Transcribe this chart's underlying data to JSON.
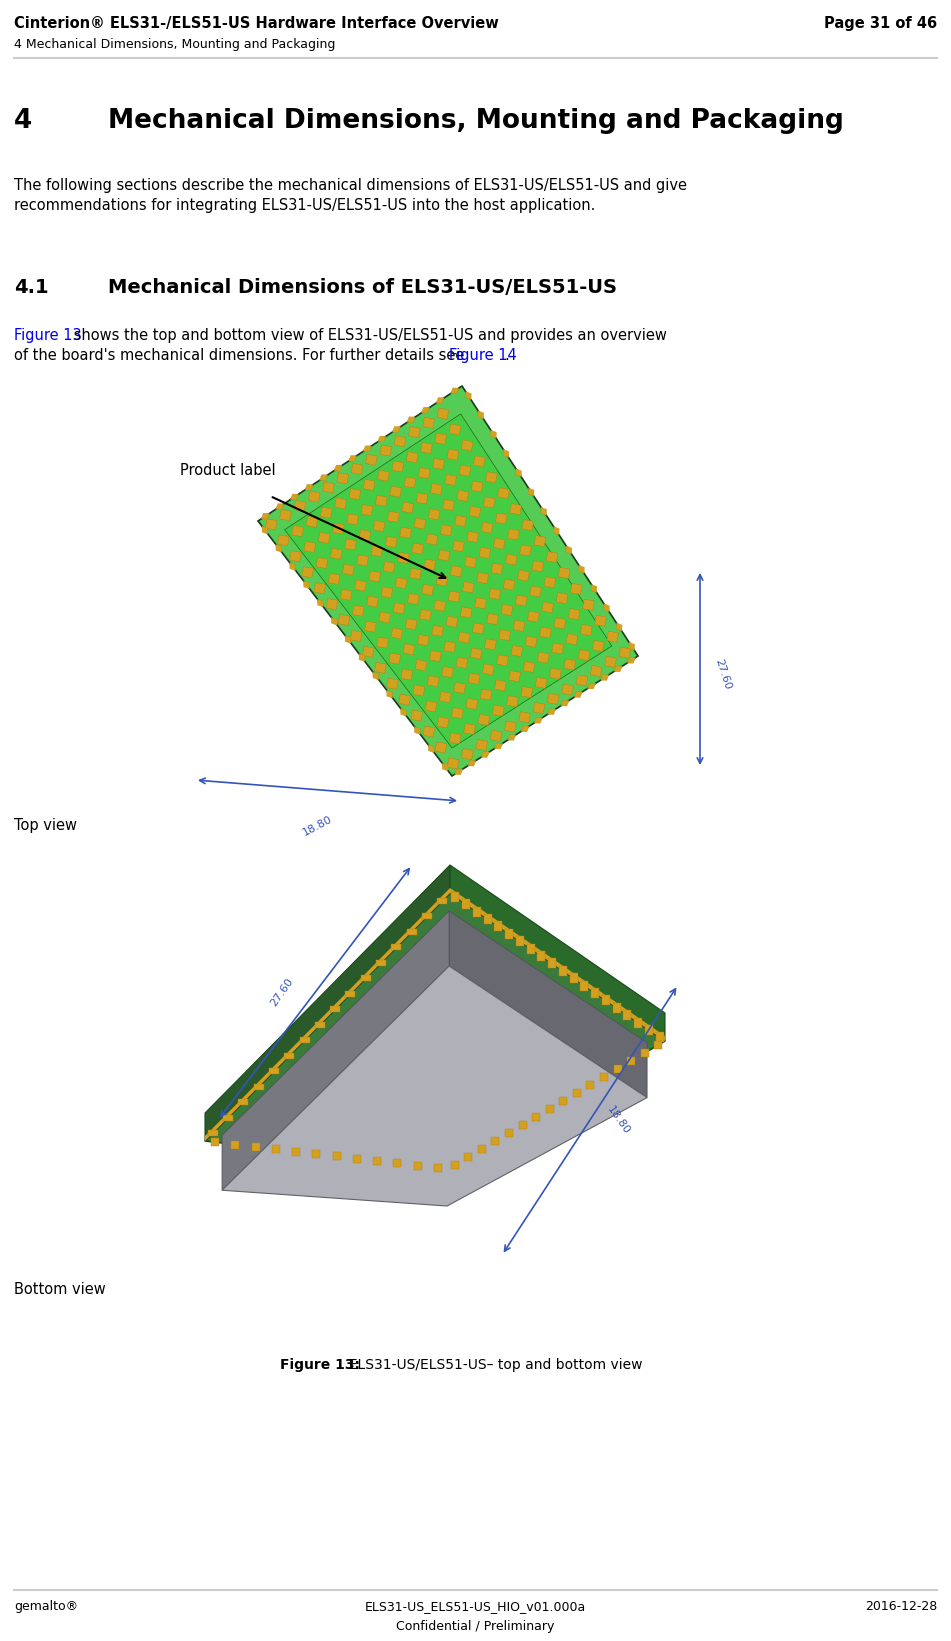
{
  "header_left": "Cinterion® ELS31-/ELS51-US Hardware Interface Overview",
  "header_right": "Page 31 of 46",
  "header_sub": "4 Mechanical Dimensions, Mounting and Packaging",
  "header_line_color": "#cccccc",
  "footer_line_color": "#cccccc",
  "footer_left": "gemalto®",
  "footer_center1": "ELS31-US_ELS51-US_HIO_v01.000a",
  "footer_center2": "Confidential / Preliminary",
  "footer_right": "2016-12-28",
  "section_number": "4",
  "section_title": "Mechanical Dimensions, Mounting and Packaging",
  "body_line1": "The following sections describe the mechanical dimensions of ELS31-US/ELS51-US and give",
  "body_line2": "recommendations for integrating ELS31-US/ELS51-US into the host application.",
  "subsection_number": "4.1",
  "subsection_title": "Mechanical Dimensions of ELS31-US/ELS51-US",
  "fig_ref_link": "Figure 13",
  "fig_ref_mid": " shows the top and bottom view of ELS31-US/ELS51-US and provides an overview",
  "fig_ref_line2a": "of the board's mechanical dimensions. For further details see ",
  "fig_ref_link2": "Figure 14",
  "fig_ref_line2b": ".",
  "link_color": "#0000ee",
  "text_color": "#000000",
  "bg_color": "#ffffff",
  "top_label": "Product label",
  "top_view_label": "Top view",
  "bottom_view_label": "Bottom view",
  "fig_caption_bold": "Figure 13:",
  "fig_caption_rest": "  ELS31-US/ELS51-US– top and bottom view",
  "dim_width": "27.60",
  "dim_height": "18.80",
  "blue_dim": "#3355bb",
  "green_pcb_dark": "#3a7a3a",
  "green_pcb_light": "#55cc55",
  "gray_lid": "#909098",
  "gray_lid_light": "#b0b0b8",
  "gray_side": "#707078",
  "gold_pad": "#d4a020",
  "gold_pad_dark": "#b08010"
}
